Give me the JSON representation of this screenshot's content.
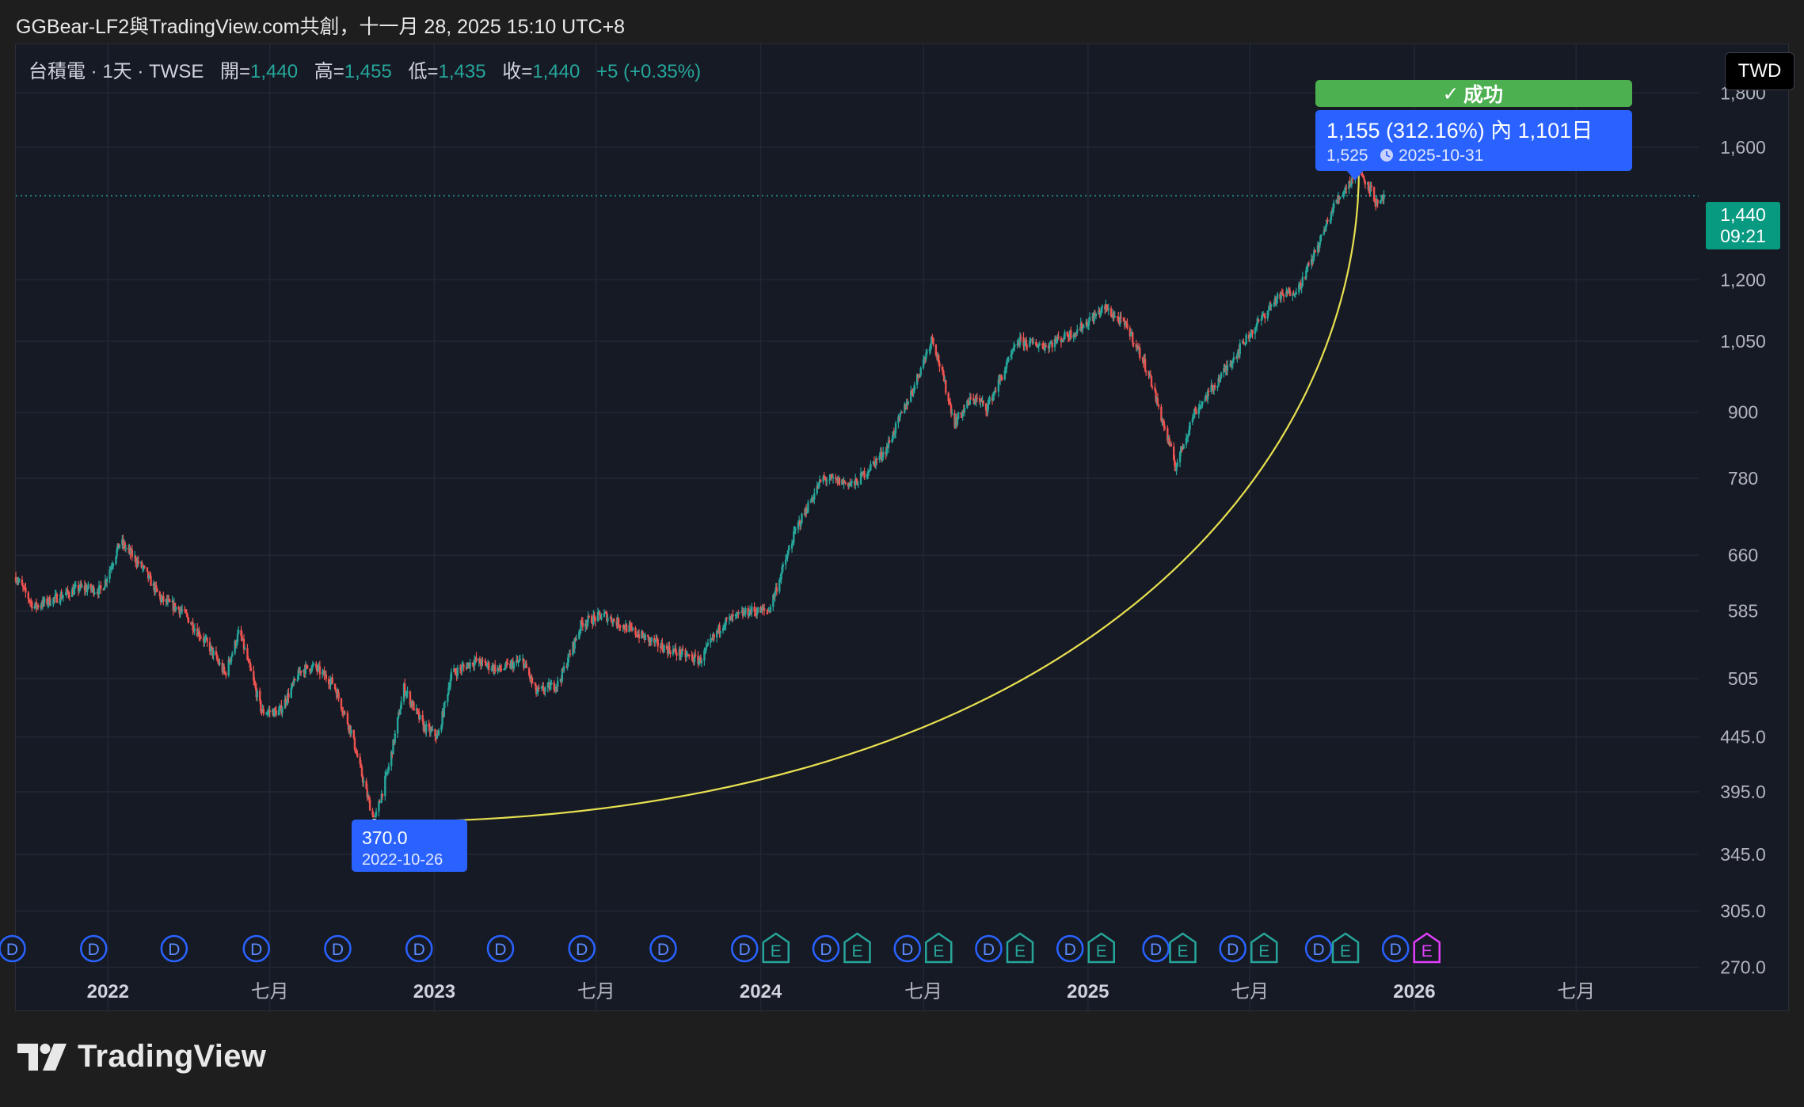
{
  "header": {
    "title": "GGBear-LF2與TradingView.com共創，十一月 28, 2025 15:10 UTC+8"
  },
  "legend": {
    "symbol": "台積電 · 1天 · TWSE",
    "open_label": "開=",
    "open": "1,440",
    "high_label": "高=",
    "high": "1,455",
    "low_label": "低=",
    "low": "1,435",
    "close_label": "收=",
    "close": "1,440",
    "change": "+5 (+0.35%)"
  },
  "currency": "TWD",
  "last_price": {
    "value": "1,440",
    "countdown": "09:21"
  },
  "success_badge": {
    "check": "✓",
    "label": "成功"
  },
  "measure": {
    "main": "1,155 (312.16%) 內 1,101日",
    "target_price": "1,525",
    "target_date": "2025-10-31"
  },
  "low_tag": {
    "price": "370.0",
    "date": "2022-10-26"
  },
  "events": {
    "dividend": "D",
    "earnings": "E"
  },
  "branding": {
    "name": "TradingView"
  },
  "colors": {
    "up": "#26a69a",
    "down": "#ef5350",
    "curve": "#e8e050",
    "tag_blue": "#2962ff",
    "success": "#4caf50",
    "earnings_magenta": "#e040fb"
  },
  "chart_data": {
    "type": "candlestick",
    "y_scale": "log",
    "ylim": [
      245,
      2000
    ],
    "y_ticks": [
      1800,
      1600,
      1200,
      1050,
      900,
      780,
      660,
      585,
      505,
      445,
      395,
      345,
      305,
      270
    ],
    "y_tick_labels": [
      "1,800",
      "1,600",
      "1,200",
      "1,050",
      "900",
      "780",
      "660",
      "585",
      "505",
      "445.0",
      "395.0",
      "345.0",
      "305.0",
      "270.0"
    ],
    "x_range": [
      "2021-09-20",
      "2026-11-15"
    ],
    "x_ticks": [
      {
        "date": "2022-01-01",
        "label": "2022",
        "bold": true
      },
      {
        "date": "2022-07-01",
        "label": "七月",
        "bold": false
      },
      {
        "date": "2023-01-01",
        "label": "2023",
        "bold": true
      },
      {
        "date": "2023-07-01",
        "label": "七月",
        "bold": false
      },
      {
        "date": "2024-01-01",
        "label": "2024",
        "bold": true
      },
      {
        "date": "2024-07-01",
        "label": "七月",
        "bold": false
      },
      {
        "date": "2025-01-01",
        "label": "2025",
        "bold": true
      },
      {
        "date": "2025-07-01",
        "label": "七月",
        "bold": false
      },
      {
        "date": "2026-01-01",
        "label": "2026",
        "bold": true
      },
      {
        "date": "2026-07-01",
        "label": "七月",
        "bold": false
      }
    ],
    "path": [
      [
        "2021-09-20",
        630
      ],
      [
        "2021-10-10",
        590
      ],
      [
        "2021-11-01",
        600
      ],
      [
        "2021-12-01",
        615
      ],
      [
        "2021-12-25",
        612
      ],
      [
        "2022-01-15",
        680
      ],
      [
        "2022-02-10",
        640
      ],
      [
        "2022-03-01",
        600
      ],
      [
        "2022-03-25",
        585
      ],
      [
        "2022-04-25",
        540
      ],
      [
        "2022-05-12",
        510
      ],
      [
        "2022-05-28",
        560
      ],
      [
        "2022-06-22",
        470
      ],
      [
        "2022-07-12",
        470
      ],
      [
        "2022-08-05",
        515
      ],
      [
        "2022-08-20",
        518
      ],
      [
        "2022-09-10",
        500
      ],
      [
        "2022-09-30",
        450
      ],
      [
        "2022-10-15",
        400
      ],
      [
        "2022-10-26",
        370
      ],
      [
        "2022-11-12",
        420
      ],
      [
        "2022-11-28",
        495
      ],
      [
        "2022-12-20",
        455
      ],
      [
        "2023-01-05",
        445
      ],
      [
        "2023-01-20",
        510
      ],
      [
        "2023-02-15",
        525
      ],
      [
        "2023-03-15",
        515
      ],
      [
        "2023-04-10",
        525
      ],
      [
        "2023-04-25",
        490
      ],
      [
        "2023-05-20",
        500
      ],
      [
        "2023-06-15",
        570
      ],
      [
        "2023-07-10",
        580
      ],
      [
        "2023-08-10",
        560
      ],
      [
        "2023-09-15",
        540
      ],
      [
        "2023-10-25",
        525
      ],
      [
        "2023-11-20",
        570
      ],
      [
        "2023-12-20",
        585
      ],
      [
        "2024-01-10",
        585
      ],
      [
        "2024-02-10",
        700
      ],
      [
        "2024-03-10",
        780
      ],
      [
        "2024-04-15",
        770
      ],
      [
        "2024-05-20",
        830
      ],
      [
        "2024-06-20",
        950
      ],
      [
        "2024-07-11",
        1060
      ],
      [
        "2024-08-05",
        880
      ],
      [
        "2024-08-25",
        930
      ],
      [
        "2024-09-10",
        910
      ],
      [
        "2024-10-15",
        1050
      ],
      [
        "2024-11-15",
        1040
      ],
      [
        "2024-12-20",
        1075
      ],
      [
        "2025-01-20",
        1130
      ],
      [
        "2025-02-15",
        1080
      ],
      [
        "2025-03-10",
        980
      ],
      [
        "2025-04-09",
        800
      ],
      [
        "2025-04-30",
        900
      ],
      [
        "2025-05-25",
        960
      ],
      [
        "2025-06-25",
        1050
      ],
      [
        "2025-07-30",
        1150
      ],
      [
        "2025-08-25",
        1180
      ],
      [
        "2025-09-15",
        1290
      ],
      [
        "2025-10-05",
        1420
      ],
      [
        "2025-10-31",
        1525
      ],
      [
        "2025-11-15",
        1450
      ],
      [
        "2025-11-22",
        1400
      ],
      [
        "2025-11-28",
        1440
      ]
    ],
    "measurement": {
      "from": {
        "date": "2022-10-26",
        "price": 370.0
      },
      "to": {
        "date": "2025-10-31",
        "price": 1525
      },
      "change": 1155,
      "change_pct": 312.16,
      "bars": 1101
    },
    "last": {
      "date": "2025-11-28",
      "open": 1440,
      "high": 1455,
      "low": 1435,
      "close": 1440,
      "change": 5,
      "change_pct": 0.35
    },
    "events": [
      {
        "date": "2021-09-16",
        "type": "D"
      },
      {
        "date": "2021-12-16",
        "type": "D"
      },
      {
        "date": "2022-03-16",
        "type": "D"
      },
      {
        "date": "2022-06-16",
        "type": "D"
      },
      {
        "date": "2022-09-15",
        "type": "D"
      },
      {
        "date": "2022-12-15",
        "type": "D"
      },
      {
        "date": "2023-03-16",
        "type": "D"
      },
      {
        "date": "2023-06-15",
        "type": "D"
      },
      {
        "date": "2023-09-14",
        "type": "D"
      },
      {
        "date": "2023-12-14",
        "type": "D"
      },
      {
        "date": "2024-01-18",
        "type": "E"
      },
      {
        "date": "2024-03-14",
        "type": "D"
      },
      {
        "date": "2024-04-18",
        "type": "E"
      },
      {
        "date": "2024-06-13",
        "type": "D"
      },
      {
        "date": "2024-07-18",
        "type": "E"
      },
      {
        "date": "2024-09-12",
        "type": "D"
      },
      {
        "date": "2024-10-17",
        "type": "E"
      },
      {
        "date": "2024-12-12",
        "type": "D"
      },
      {
        "date": "2025-01-16",
        "type": "E"
      },
      {
        "date": "2025-03-18",
        "type": "D"
      },
      {
        "date": "2025-04-17",
        "type": "E"
      },
      {
        "date": "2025-06-12",
        "type": "D"
      },
      {
        "date": "2025-07-17",
        "type": "E"
      },
      {
        "date": "2025-09-16",
        "type": "D"
      },
      {
        "date": "2025-10-16",
        "type": "E"
      },
      {
        "date": "2025-12-11",
        "type": "D"
      },
      {
        "date": "2026-01-15",
        "type": "E"
      }
    ]
  }
}
